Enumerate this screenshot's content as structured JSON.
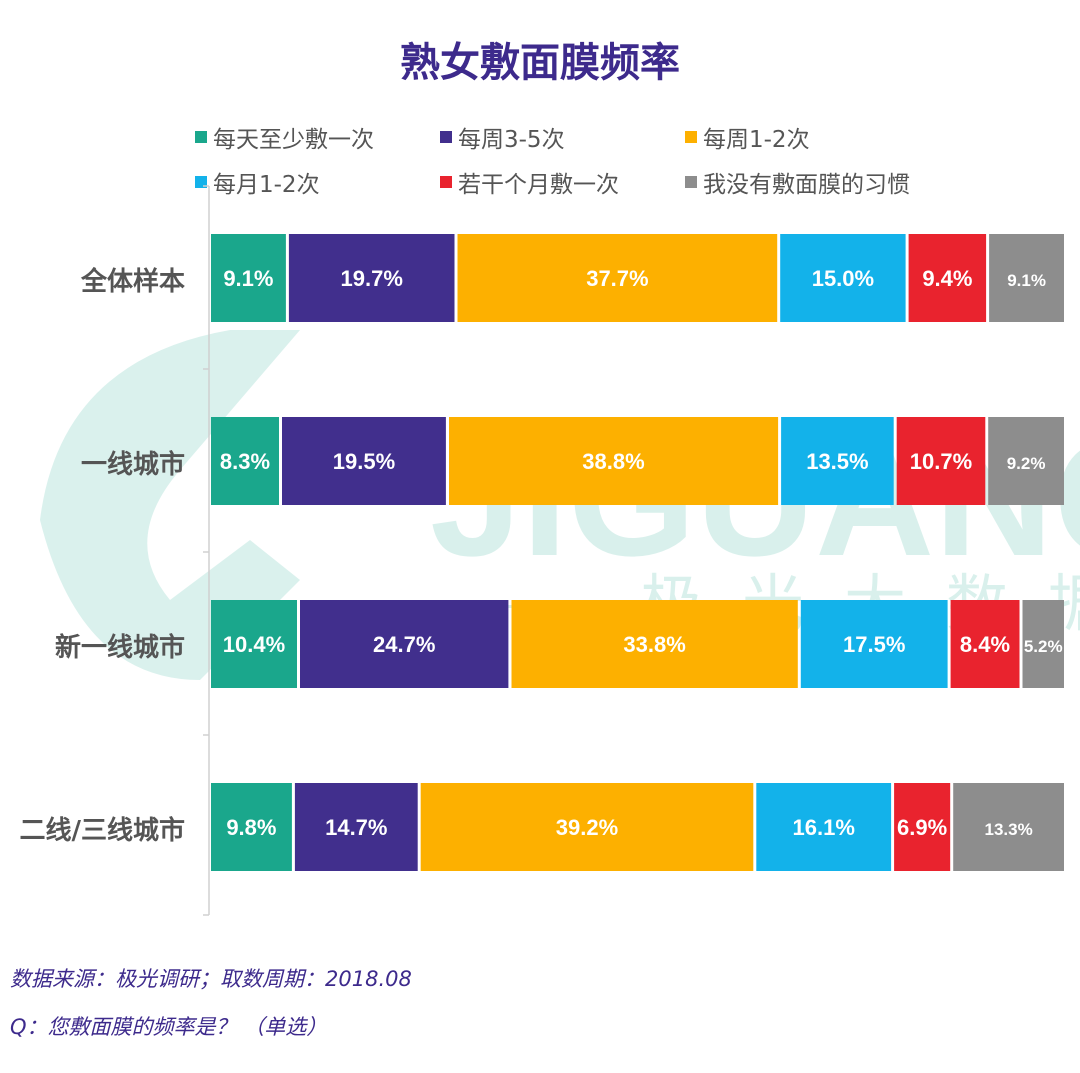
{
  "title": "熟女敷面膜频率",
  "watermark": {
    "brand": "JIGUANG",
    "subtitle": "极光大数据"
  },
  "colors": [
    "#1aa78c",
    "#412f8d",
    "#fdb000",
    "#13b2ea",
    "#e9232e",
    "#8d8d8d"
  ],
  "footer": {
    "source": "数据来源：极光调研；取数周期：2018.08",
    "question": "Q：您敷面膜的频率是？ （单选）"
  },
  "chart_data": {
    "type": "bar",
    "orientation": "horizontal",
    "stacked": true,
    "percent_stacked": true,
    "legend_position": "top",
    "grid": false,
    "categories": [
      "全体样本",
      "一线城市",
      "新一线城市",
      "二线/三线城市"
    ],
    "series": [
      {
        "name": "每天至少敷一次",
        "values": [
          9.1,
          8.3,
          10.4,
          9.8
        ],
        "labels": [
          "9.1%",
          "8.3%",
          "10.4%",
          "9.8%"
        ]
      },
      {
        "name": "每周3-5次",
        "values": [
          19.7,
          19.5,
          24.7,
          14.7
        ],
        "labels": [
          "19.7%",
          "19.5%",
          "24.7%",
          "14.7%"
        ]
      },
      {
        "name": "每周1-2次",
        "values": [
          37.7,
          38.8,
          33.8,
          39.2
        ],
        "labels": [
          "37.7%",
          "38.8%",
          "33.8%",
          "39.2%"
        ]
      },
      {
        "name": "每月1-2次",
        "values": [
          15.0,
          13.5,
          17.5,
          16.1
        ],
        "labels": [
          "15.0%",
          "13.5%",
          "17.5%",
          "16.1%"
        ]
      },
      {
        "name": "若干个月敷一次",
        "values": [
          9.4,
          10.7,
          8.4,
          6.9
        ],
        "labels": [
          "9.4%",
          "10.7%",
          "8.4%",
          "6.9%"
        ]
      },
      {
        "name": "我没有敷面膜的习惯",
        "values": [
          9.1,
          9.2,
          5.2,
          13.3
        ],
        "labels": [
          "9.1%",
          "9.2%",
          "5.2%",
          "13.3%"
        ]
      }
    ]
  }
}
